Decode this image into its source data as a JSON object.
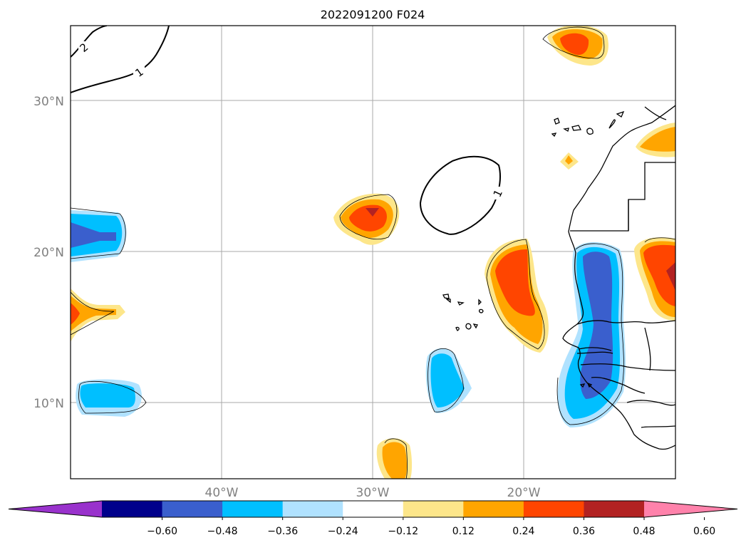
{
  "title": "2022091200 F024",
  "map": {
    "extent": {
      "lon_min": -50,
      "lon_max": -10,
      "lat_min": 5,
      "lat_max": 35
    },
    "lat_ticks": [
      {
        "value": 30,
        "label": "30°N"
      },
      {
        "value": 20,
        "label": "20°N"
      },
      {
        "value": 10,
        "label": "10°N"
      }
    ],
    "lon_ticks": [
      {
        "value": -40,
        "label": "40°W"
      },
      {
        "value": -30,
        "label": "30°W"
      },
      {
        "value": -20,
        "label": "20°W"
      }
    ],
    "gridlines": true,
    "contour_labels": [
      "2",
      "1",
      "1"
    ]
  },
  "colorbar": {
    "colors": [
      "#9932cc",
      "#00008b",
      "#3a5fcd",
      "#00bfff",
      "#b0e2ff",
      "#ffffff",
      "#fde68a",
      "#ffa500",
      "#ff4500",
      "#b22222",
      "#ff82ab"
    ],
    "tick_labels": [
      "−0.60",
      "−0.48",
      "−0.36",
      "−0.24",
      "−0.12",
      "0.12",
      "0.24",
      "0.36",
      "0.48",
      "0.60"
    ],
    "extend": "both",
    "orientation": "horizontal"
  }
}
